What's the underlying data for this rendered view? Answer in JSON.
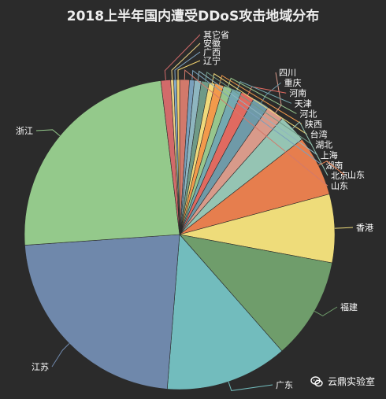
{
  "chart_data": {
    "type": "pie",
    "title": "2018上半年国内遭受DDoS攻击地域分布",
    "slices": [
      {
        "label": "山东",
        "value": 1.0,
        "color": "#d2796b"
      },
      {
        "label": "湖南",
        "value": 0.5,
        "color": "#7aa0bc"
      },
      {
        "label": "上海",
        "value": 0.7,
        "color": "#8eb6c0"
      },
      {
        "label": "湖北",
        "value": 0.8,
        "color": "#6f9a87"
      },
      {
        "label": "台湾",
        "value": 0.6,
        "color": "#f0d97b"
      },
      {
        "label": "陕西",
        "value": 0.9,
        "color": "#f29a4b"
      },
      {
        "label": "河北",
        "value": 0.9,
        "color": "#97c68d"
      },
      {
        "label": "天津",
        "value": 1.0,
        "color": "#74a9b0"
      },
      {
        "label": "河南",
        "value": 1.4,
        "color": "#e06a60"
      },
      {
        "label": "重庆",
        "value": 1.7,
        "color": "#6f9aa8"
      },
      {
        "label": "四川",
        "value": 1.8,
        "color": "#d89a8a"
      },
      {
        "label": "北京",
        "value": 2.9,
        "color": "#95c4b3"
      },
      {
        "label": "山东",
        "value": 6.2,
        "color": "#e67e4e"
      },
      {
        "label": "香港",
        "value": 7.0,
        "color": "#eedc7a"
      },
      {
        "label": "福建",
        "value": 10.4,
        "color": "#6f9d6b"
      },
      {
        "label": "广东",
        "value": 12.5,
        "color": "#72bcbd"
      },
      {
        "label": "江苏",
        "value": 22.2,
        "color": "#6f88ab"
      },
      {
        "label": "浙江",
        "value": 23.7,
        "color": "#94c98b"
      },
      {
        "label": "其它省",
        "value": 1.0,
        "color": "#d26a6a"
      },
      {
        "label": "安徽",
        "value": 0.3,
        "color": "#ecd283"
      },
      {
        "label": "广西",
        "value": 0.3,
        "color": "#82a8c8"
      },
      {
        "label": "辽宁",
        "value": 0.3,
        "color": "#f3d36f"
      }
    ]
  },
  "watermark": {
    "text": "云鼎实验室",
    "icon": "wechat-icon"
  }
}
